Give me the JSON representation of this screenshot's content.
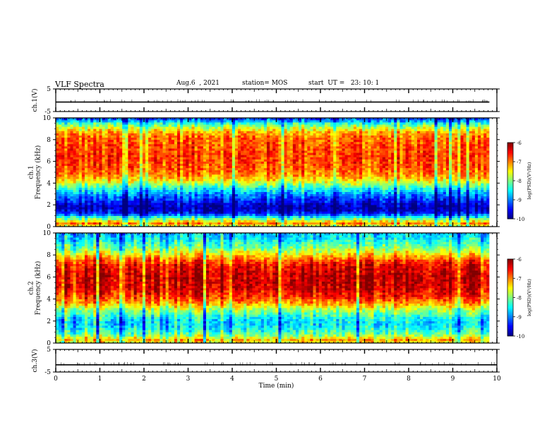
{
  "header": {
    "title": "VLF Spectra",
    "date": "Aug.6  , 2021",
    "station": "station= MOS",
    "start": "start  UT =   23: 10: 1"
  },
  "chart_data": [
    {
      "type": "line",
      "panel": "ch1-voltage",
      "ylabel": "ch.1(V)",
      "ylim": [
        -5,
        5
      ],
      "yticks": [
        "5",
        "-5"
      ],
      "xlim": [
        0,
        9.83
      ],
      "series": [
        {
          "values_approx": [
            -0.8,
            -0.8,
            -0.8,
            -0.8,
            -0.8,
            -0.8,
            -0.8,
            -0.8,
            -0.8,
            -0.8,
            -0.8
          ]
        }
      ]
    },
    {
      "type": "heatmap",
      "panel": "ch1-spectrogram",
      "ylabel": "ch.1\nFrequency (kHz)",
      "ylim": [
        0,
        10
      ],
      "yticks": [
        "0",
        "2",
        "4",
        "6",
        "8",
        "10"
      ],
      "x_range_min": [
        0,
        9.83
      ],
      "colorbar": {
        "label": "log(PSD)(V²/Hz)",
        "ticks": [
          "-6",
          "-7",
          "-8",
          "-9",
          "-10"
        ],
        "range": [
          -10,
          -6
        ]
      },
      "profile_freq_khz": [
        0,
        0.3,
        0.8,
        1.2,
        1.6,
        2.0,
        2.5,
        3.0,
        3.5,
        3.9,
        4.3,
        4.8,
        5.5,
        6.5,
        7.5,
        8.2,
        8.7,
        9.1,
        9.5,
        9.8,
        10
      ],
      "profile_log_psd": [
        -7.8,
        -7.0,
        -8.2,
        -9.4,
        -9.8,
        -9.7,
        -9.3,
        -8.9,
        -8.4,
        -7.9,
        -7.4,
        -7.0,
        -6.8,
        -6.7,
        -6.8,
        -6.9,
        -7.2,
        -7.7,
        -8.3,
        -9.0,
        -9.3
      ]
    },
    {
      "type": "heatmap",
      "panel": "ch2-spectrogram",
      "ylabel": "ch.2\nFrequency (kHz)",
      "ylim": [
        0,
        10
      ],
      "yticks": [
        "0",
        "2",
        "4",
        "6",
        "8",
        "10"
      ],
      "x_range_min": [
        0,
        9.83
      ],
      "colorbar": {
        "label": "log(PSD)(V²/Hz)",
        "ticks": [
          "-6",
          "-7",
          "-8",
          "-9",
          "-10"
        ],
        "range": [
          -10,
          -6
        ]
      },
      "profile_freq_khz": [
        0,
        0.3,
        0.8,
        1.3,
        1.8,
        2.3,
        2.8,
        3.2,
        3.7,
        4.2,
        5.0,
        6.0,
        7.0,
        7.6,
        8.0,
        8.5,
        9.0,
        9.5,
        10
      ],
      "profile_log_psd": [
        -7.5,
        -7.2,
        -8.0,
        -8.4,
        -8.6,
        -8.4,
        -8.0,
        -7.6,
        -7.0,
        -6.6,
        -6.3,
        -6.2,
        -6.4,
        -6.8,
        -7.3,
        -7.8,
        -8.2,
        -8.5,
        -8.7
      ]
    },
    {
      "type": "line",
      "panel": "ch3-voltage",
      "ylabel": "ch.3(V)",
      "ylim": [
        -5,
        5
      ],
      "yticks": [
        "5",
        "-5"
      ],
      "xlabel": "Time (min)",
      "xlim": [
        0,
        10
      ],
      "xticks": [
        "0",
        "1",
        "2",
        "3",
        "4",
        "5",
        "6",
        "7",
        "8",
        "9",
        "10"
      ],
      "series": [
        {
          "values_approx": [
            -1.8,
            -1.8,
            -1.8,
            -1.8,
            -1.8,
            -1.8,
            -1.8,
            -1.8,
            -1.8,
            -1.8,
            -1.8
          ]
        }
      ]
    }
  ]
}
